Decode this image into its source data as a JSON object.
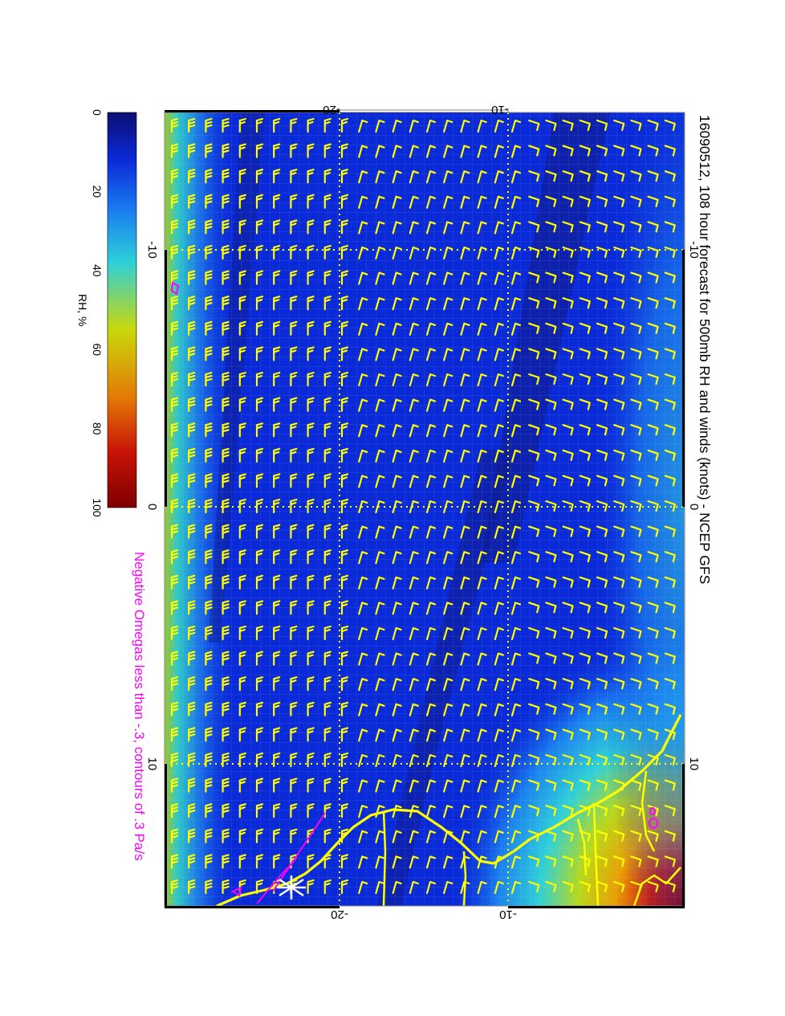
{
  "title": "16090512, 108 hour forecast for 500mb RH and winds (knots) - NCEP GFS",
  "subtitle": "Negative Omegas less than -.3, contours of .3 Pa/s",
  "colorbar": {
    "label": "RH, %",
    "ticks": [
      "0",
      "20",
      "40",
      "60",
      "80",
      "100"
    ],
    "range": [
      0,
      100
    ],
    "colors": [
      "#0c0f72",
      "#0a2ad8",
      "#1a7ff0",
      "#2fd0d8",
      "#c9d80a",
      "#e47a06",
      "#c81206",
      "#7e0000"
    ]
  },
  "map": {
    "axis_top_ticks": [
      "-20",
      "-10"
    ],
    "axis_bottom_ticks": [
      "-20",
      "-10"
    ],
    "axis_left_ticks": [
      "-10",
      "0",
      "10"
    ],
    "axis_right_ticks": [
      "-10",
      "0",
      "10"
    ],
    "wind_barb_color": "#ffff00",
    "coastline_color": "#ffff00",
    "omega_contour_color": "#ff00ff",
    "gridline_color": "#ffff00"
  }
}
